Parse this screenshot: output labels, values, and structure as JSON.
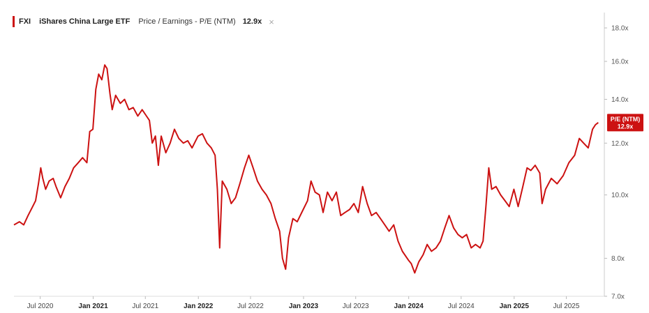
{
  "legend": {
    "ticker": "FXI",
    "fund_name": "iShares China Large ETF",
    "metric": "Price / Earnings - P/E (NTM)",
    "value": "12.9x",
    "close_symbol": "×"
  },
  "colors": {
    "line": "#cc1111",
    "tag_bg": "#cc1111",
    "axis": "#888888"
  },
  "tag": {
    "line1": "P/E (NTM)",
    "line2": "12.9x"
  },
  "chart_data": {
    "type": "line",
    "y_scale": "log",
    "ylim": [
      7.0,
      19.0
    ],
    "y_ticks": [
      {
        "v": 7.0,
        "label": "7.0x"
      },
      {
        "v": 8.0,
        "label": "8.0x"
      },
      {
        "v": 10.0,
        "label": "10.0x"
      },
      {
        "v": 12.0,
        "label": "12.0x"
      },
      {
        "v": 14.0,
        "label": "14.0x"
      },
      {
        "v": 16.0,
        "label": "16.0x"
      },
      {
        "v": 18.0,
        "label": "18.0x"
      }
    ],
    "xlim": [
      "2020-04-01",
      "2025-11-10"
    ],
    "x_ticks": [
      {
        "date": "2020-07-01",
        "label": "Jul 2020",
        "major": false
      },
      {
        "date": "2021-01-01",
        "label": "Jan 2021",
        "major": true
      },
      {
        "date": "2021-07-01",
        "label": "Jul 2021",
        "major": false
      },
      {
        "date": "2022-01-01",
        "label": "Jan 2022",
        "major": true
      },
      {
        "date": "2022-07-01",
        "label": "Jul 2022",
        "major": false
      },
      {
        "date": "2023-01-01",
        "label": "Jan 2023",
        "major": true
      },
      {
        "date": "2023-07-01",
        "label": "Jul 2023",
        "major": false
      },
      {
        "date": "2024-01-01",
        "label": "Jan 2024",
        "major": true
      },
      {
        "date": "2024-07-01",
        "label": "Jul 2024",
        "major": false
      },
      {
        "date": "2025-01-01",
        "label": "Jan 2025",
        "major": true
      },
      {
        "date": "2025-07-01",
        "label": "Jul 2025",
        "major": false
      }
    ],
    "series": [
      {
        "points": [
          [
            "2020-04-01",
            9.0
          ],
          [
            "2020-04-20",
            9.1
          ],
          [
            "2020-05-05",
            9.0
          ],
          [
            "2020-05-20",
            9.3
          ],
          [
            "2020-06-05",
            9.6
          ],
          [
            "2020-06-15",
            9.8
          ],
          [
            "2020-06-25",
            10.4
          ],
          [
            "2020-07-03",
            11.0
          ],
          [
            "2020-07-10",
            10.6
          ],
          [
            "2020-07-20",
            10.2
          ],
          [
            "2020-08-01",
            10.5
          ],
          [
            "2020-08-15",
            10.6
          ],
          [
            "2020-08-25",
            10.3
          ],
          [
            "2020-09-10",
            9.9
          ],
          [
            "2020-09-25",
            10.3
          ],
          [
            "2020-10-10",
            10.6
          ],
          [
            "2020-10-25",
            11.0
          ],
          [
            "2020-11-10",
            11.2
          ],
          [
            "2020-11-25",
            11.4
          ],
          [
            "2020-12-10",
            11.2
          ],
          [
            "2020-12-20",
            12.5
          ],
          [
            "2020-12-31",
            12.6
          ],
          [
            "2021-01-10",
            14.5
          ],
          [
            "2021-01-20",
            15.3
          ],
          [
            "2021-01-31",
            15.0
          ],
          [
            "2021-02-10",
            15.8
          ],
          [
            "2021-02-18",
            15.6
          ],
          [
            "2021-02-28",
            14.3
          ],
          [
            "2021-03-08",
            13.5
          ],
          [
            "2021-03-20",
            14.2
          ],
          [
            "2021-04-05",
            13.8
          ],
          [
            "2021-04-20",
            14.0
          ],
          [
            "2021-05-05",
            13.5
          ],
          [
            "2021-05-20",
            13.6
          ],
          [
            "2021-06-05",
            13.2
          ],
          [
            "2021-06-20",
            13.5
          ],
          [
            "2021-07-05",
            13.2
          ],
          [
            "2021-07-15",
            13.0
          ],
          [
            "2021-07-25",
            12.0
          ],
          [
            "2021-08-05",
            12.3
          ],
          [
            "2021-08-15",
            11.1
          ],
          [
            "2021-08-25",
            12.3
          ],
          [
            "2021-09-10",
            11.6
          ],
          [
            "2021-09-25",
            12.0
          ],
          [
            "2021-10-10",
            12.6
          ],
          [
            "2021-10-25",
            12.2
          ],
          [
            "2021-11-10",
            12.0
          ],
          [
            "2021-11-25",
            12.1
          ],
          [
            "2021-12-10",
            11.8
          ],
          [
            "2021-12-31",
            12.3
          ],
          [
            "2022-01-15",
            12.4
          ],
          [
            "2022-01-31",
            12.0
          ],
          [
            "2022-02-15",
            11.8
          ],
          [
            "2022-02-28",
            11.5
          ],
          [
            "2022-03-08",
            10.2
          ],
          [
            "2022-03-16",
            8.3
          ],
          [
            "2022-03-25",
            10.5
          ],
          [
            "2022-04-10",
            10.2
          ],
          [
            "2022-04-25",
            9.7
          ],
          [
            "2022-05-10",
            9.9
          ],
          [
            "2022-05-25",
            10.4
          ],
          [
            "2022-06-10",
            11.0
          ],
          [
            "2022-06-25",
            11.5
          ],
          [
            "2022-07-10",
            11.0
          ],
          [
            "2022-07-25",
            10.5
          ],
          [
            "2022-08-10",
            10.2
          ],
          [
            "2022-08-25",
            10.0
          ],
          [
            "2022-09-10",
            9.7
          ],
          [
            "2022-09-25",
            9.2
          ],
          [
            "2022-10-10",
            8.8
          ],
          [
            "2022-10-20",
            8.0
          ],
          [
            "2022-10-31",
            7.7
          ],
          [
            "2022-11-10",
            8.6
          ],
          [
            "2022-11-25",
            9.2
          ],
          [
            "2022-12-10",
            9.1
          ],
          [
            "2022-12-31",
            9.5
          ],
          [
            "2023-01-15",
            9.8
          ],
          [
            "2023-01-27",
            10.5
          ],
          [
            "2023-02-10",
            10.1
          ],
          [
            "2023-02-25",
            10.0
          ],
          [
            "2023-03-10",
            9.4
          ],
          [
            "2023-03-25",
            10.1
          ],
          [
            "2023-04-10",
            9.8
          ],
          [
            "2023-04-25",
            10.1
          ],
          [
            "2023-05-10",
            9.3
          ],
          [
            "2023-05-25",
            9.4
          ],
          [
            "2023-06-10",
            9.5
          ],
          [
            "2023-06-25",
            9.7
          ],
          [
            "2023-07-10",
            9.4
          ],
          [
            "2023-07-25",
            10.3
          ],
          [
            "2023-08-10",
            9.7
          ],
          [
            "2023-08-25",
            9.3
          ],
          [
            "2023-09-10",
            9.4
          ],
          [
            "2023-09-25",
            9.2
          ],
          [
            "2023-10-10",
            9.0
          ],
          [
            "2023-10-25",
            8.8
          ],
          [
            "2023-11-10",
            9.0
          ],
          [
            "2023-11-25",
            8.5
          ],
          [
            "2023-12-10",
            8.2
          ],
          [
            "2023-12-31",
            7.95
          ],
          [
            "2024-01-10",
            7.85
          ],
          [
            "2024-01-22",
            7.6
          ],
          [
            "2024-02-05",
            7.9
          ],
          [
            "2024-02-20",
            8.1
          ],
          [
            "2024-03-05",
            8.4
          ],
          [
            "2024-03-20",
            8.2
          ],
          [
            "2024-04-05",
            8.3
          ],
          [
            "2024-04-20",
            8.5
          ],
          [
            "2024-05-05",
            8.9
          ],
          [
            "2024-05-20",
            9.3
          ],
          [
            "2024-06-05",
            8.9
          ],
          [
            "2024-06-20",
            8.7
          ],
          [
            "2024-07-05",
            8.6
          ],
          [
            "2024-07-20",
            8.7
          ],
          [
            "2024-08-05",
            8.3
          ],
          [
            "2024-08-20",
            8.4
          ],
          [
            "2024-09-05",
            8.3
          ],
          [
            "2024-09-15",
            8.5
          ],
          [
            "2024-09-25",
            9.6
          ],
          [
            "2024-10-05",
            11.0
          ],
          [
            "2024-10-15",
            10.2
          ],
          [
            "2024-10-30",
            10.3
          ],
          [
            "2024-11-15",
            10.0
          ],
          [
            "2024-11-30",
            9.8
          ],
          [
            "2024-12-15",
            9.6
          ],
          [
            "2024-12-31",
            10.2
          ],
          [
            "2025-01-15",
            9.6
          ],
          [
            "2025-01-31",
            10.3
          ],
          [
            "2025-02-15",
            11.0
          ],
          [
            "2025-02-28",
            10.9
          ],
          [
            "2025-03-15",
            11.1
          ],
          [
            "2025-03-31",
            10.8
          ],
          [
            "2025-04-08",
            9.7
          ],
          [
            "2025-04-20",
            10.2
          ],
          [
            "2025-05-10",
            10.6
          ],
          [
            "2025-05-30",
            10.4
          ],
          [
            "2025-06-20",
            10.7
          ],
          [
            "2025-07-10",
            11.2
          ],
          [
            "2025-07-30",
            11.5
          ],
          [
            "2025-08-15",
            12.2
          ],
          [
            "2025-08-30",
            12.0
          ],
          [
            "2025-09-15",
            11.8
          ],
          [
            "2025-09-30",
            12.6
          ],
          [
            "2025-10-10",
            12.8
          ],
          [
            "2025-10-20",
            12.9
          ]
        ]
      }
    ]
  }
}
